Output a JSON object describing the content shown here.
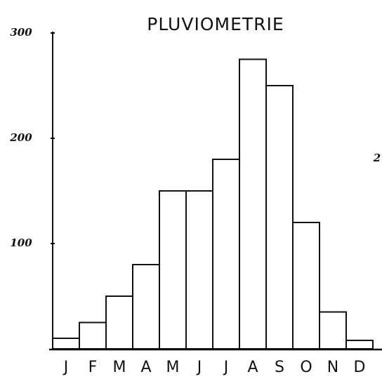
{
  "chart_data": {
    "type": "bar",
    "title": "PLUVIOMETRIE",
    "categories": [
      "J",
      "F",
      "M",
      "A",
      "M",
      "J",
      "J",
      "A",
      "S",
      "O",
      "N",
      "D"
    ],
    "values": [
      10,
      25,
      50,
      80,
      150,
      150,
      180,
      275,
      250,
      120,
      35,
      8
    ],
    "color": "#ffffff",
    "ylim": [
      0,
      300
    ],
    "yticks": [
      100,
      200,
      300
    ],
    "grid": false,
    "annotation": "2"
  }
}
